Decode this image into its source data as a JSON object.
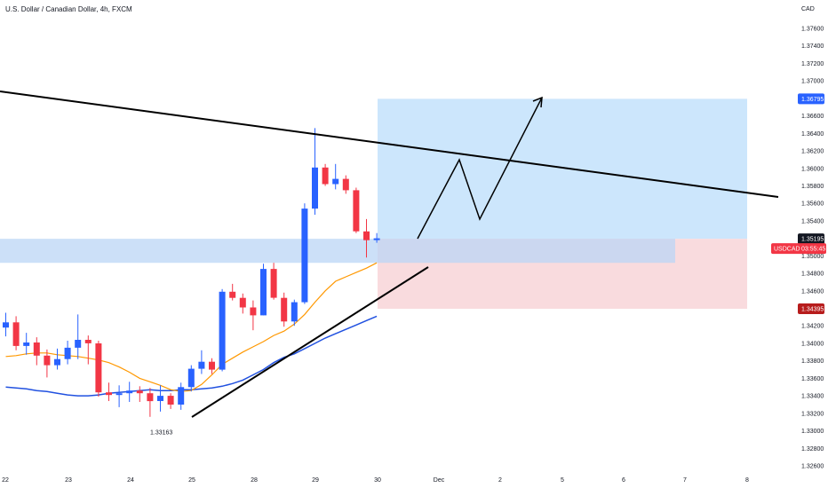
{
  "header": {
    "title": "U.S. Dollar / Canadian Dollar, 4h, FXCM"
  },
  "colors": {
    "up": "#2962ff",
    "down": "#f23645",
    "ma_fast": "#ff9800",
    "ma_slow": "#2151e0",
    "target_zone": "#bbdefb",
    "stop_zone": "#f8d7da",
    "support_band": "#bbd6f5",
    "trendline": "#000000"
  },
  "price_scale": {
    "currency": "CAD",
    "ticks": [
      "1.37600",
      "1.37400",
      "1.37200",
      "1.37000",
      "1.36600",
      "1.36400",
      "1.36200",
      "1.36000",
      "1.35800",
      "1.35600",
      "1.35400",
      "1.35000",
      "1.34800",
      "1.34600",
      "1.34200",
      "1.34000",
      "1.33800",
      "1.33600",
      "1.33400",
      "1.33200",
      "1.33000",
      "1.32800",
      "1.32600"
    ],
    "target_tag": "1.36795",
    "last_price_tag": "1.35195",
    "symbol_tag": "USDCAD",
    "countdown_tag": "03:55:45",
    "stop_tag": "1.34395"
  },
  "low_label": "1.33163",
  "chart_data": {
    "type": "candlestick",
    "title": "U.S. Dollar / Canadian Dollar, 4h, FXCM",
    "ylabel": "CAD",
    "x_ticks": [
      "22",
      "23",
      "24",
      "25",
      "28",
      "29",
      "30",
      "Dec",
      "2",
      "5",
      "6",
      "7",
      "8"
    ],
    "ylim": [
      1.3244,
      1.3792
    ],
    "candles": [
      {
        "o": 1.3418,
        "h": 1.3435,
        "l": 1.3408,
        "c": 1.3424
      },
      {
        "o": 1.3424,
        "h": 1.3431,
        "l": 1.3392,
        "c": 1.3397
      },
      {
        "o": 1.3397,
        "h": 1.3412,
        "l": 1.3387,
        "c": 1.3401
      },
      {
        "o": 1.3401,
        "h": 1.3407,
        "l": 1.3375,
        "c": 1.3386
      },
      {
        "o": 1.3386,
        "h": 1.3393,
        "l": 1.3361,
        "c": 1.3375
      },
      {
        "o": 1.3375,
        "h": 1.3394,
        "l": 1.337,
        "c": 1.3382
      },
      {
        "o": 1.3382,
        "h": 1.3403,
        "l": 1.3376,
        "c": 1.3395
      },
      {
        "o": 1.3395,
        "h": 1.3433,
        "l": 1.3382,
        "c": 1.3404
      },
      {
        "o": 1.3404,
        "h": 1.3409,
        "l": 1.3376,
        "c": 1.34
      },
      {
        "o": 1.34,
        "h": 1.3403,
        "l": 1.3339,
        "c": 1.3344
      },
      {
        "o": 1.3344,
        "h": 1.3355,
        "l": 1.3334,
        "c": 1.3341
      },
      {
        "o": 1.3341,
        "h": 1.3352,
        "l": 1.3327,
        "c": 1.3343
      },
      {
        "o": 1.3343,
        "h": 1.3356,
        "l": 1.3333,
        "c": 1.3346
      },
      {
        "o": 1.3346,
        "h": 1.3351,
        "l": 1.3333,
        "c": 1.3343
      },
      {
        "o": 1.3343,
        "h": 1.3349,
        "l": 1.3316,
        "c": 1.3334
      },
      {
        "o": 1.3334,
        "h": 1.3352,
        "l": 1.3322,
        "c": 1.334
      },
      {
        "o": 1.334,
        "h": 1.3343,
        "l": 1.3325,
        "c": 1.333
      },
      {
        "o": 1.333,
        "h": 1.3355,
        "l": 1.3324,
        "c": 1.335
      },
      {
        "o": 1.335,
        "h": 1.3375,
        "l": 1.3345,
        "c": 1.3371
      },
      {
        "o": 1.3371,
        "h": 1.3392,
        "l": 1.3365,
        "c": 1.3379
      },
      {
        "o": 1.3379,
        "h": 1.3383,
        "l": 1.3365,
        "c": 1.337
      },
      {
        "o": 1.337,
        "h": 1.3462,
        "l": 1.3368,
        "c": 1.3459
      },
      {
        "o": 1.3459,
        "h": 1.3468,
        "l": 1.3449,
        "c": 1.3452
      },
      {
        "o": 1.3452,
        "h": 1.3457,
        "l": 1.3434,
        "c": 1.3441
      },
      {
        "o": 1.3441,
        "h": 1.3449,
        "l": 1.3415,
        "c": 1.3432
      },
      {
        "o": 1.3432,
        "h": 1.3491,
        "l": 1.3432,
        "c": 1.3485
      },
      {
        "o": 1.3485,
        "h": 1.3492,
        "l": 1.345,
        "c": 1.3452
      },
      {
        "o": 1.3452,
        "h": 1.3458,
        "l": 1.3419,
        "c": 1.3425
      },
      {
        "o": 1.3425,
        "h": 1.345,
        "l": 1.342,
        "c": 1.3447
      },
      {
        "o": 1.3447,
        "h": 1.356,
        "l": 1.3445,
        "c": 1.3554
      },
      {
        "o": 1.3554,
        "h": 1.3646,
        "l": 1.3547,
        "c": 1.3601
      },
      {
        "o": 1.3601,
        "h": 1.3605,
        "l": 1.358,
        "c": 1.3582
      },
      {
        "o": 1.3582,
        "h": 1.3605,
        "l": 1.3576,
        "c": 1.3588
      },
      {
        "o": 1.3588,
        "h": 1.3592,
        "l": 1.3571,
        "c": 1.3575
      },
      {
        "o": 1.3575,
        "h": 1.3578,
        "l": 1.3526,
        "c": 1.3528
      },
      {
        "o": 1.3528,
        "h": 1.3542,
        "l": 1.3498,
        "c": 1.3518
      },
      {
        "o": 1.3518,
        "h": 1.3526,
        "l": 1.3515,
        "c": 1.352
      }
    ],
    "ma_fast": [
      1.3385,
      1.3386,
      1.3388,
      1.3389,
      1.3389,
      1.3387,
      1.3386,
      1.3385,
      1.3383,
      1.3381,
      1.3378,
      1.3373,
      1.3367,
      1.336,
      1.3356,
      1.3352,
      1.3347,
      1.3345,
      1.3346,
      1.3353,
      1.3364,
      1.3376,
      1.3383,
      1.339,
      1.3396,
      1.3402,
      1.3409,
      1.3414,
      1.3422,
      1.3433,
      1.3447,
      1.346,
      1.3471,
      1.3476,
      1.3481,
      1.3486,
      1.3492
    ],
    "ma_slow": [
      1.335,
      1.3349,
      1.3348,
      1.3346,
      1.3345,
      1.3343,
      1.3341,
      1.334,
      1.334,
      1.3341,
      1.3343,
      1.3344,
      1.3345,
      1.3346,
      1.3347,
      1.3346,
      1.3346,
      1.3347,
      1.3347,
      1.3348,
      1.3349,
      1.3351,
      1.3354,
      1.3358,
      1.3364,
      1.337,
      1.3378,
      1.3384,
      1.3388,
      1.3394,
      1.34,
      1.3406,
      1.3411,
      1.3416,
      1.3421,
      1.3426,
      1.3431
    ],
    "target_price": 1.36795,
    "last_price": 1.35195,
    "stop_price": 1.34395,
    "low_marker": 1.33163
  }
}
